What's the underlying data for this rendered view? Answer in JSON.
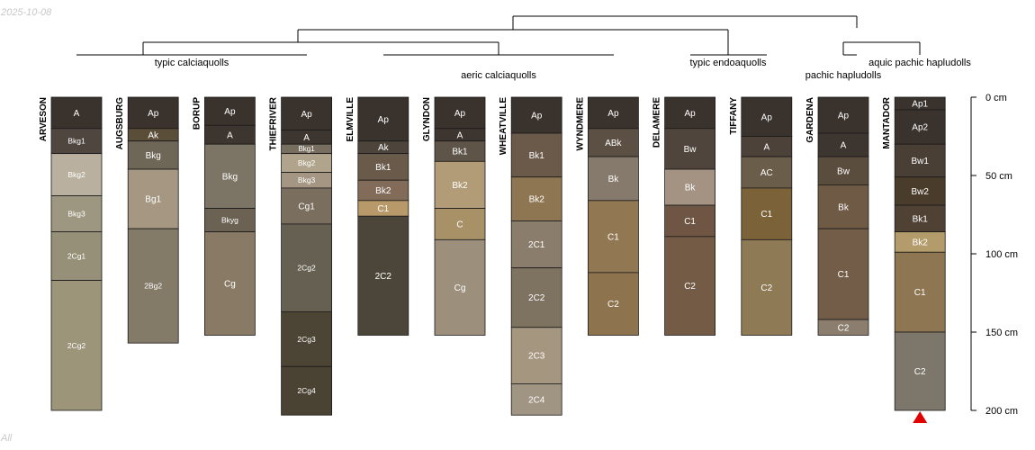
{
  "watermark": {
    "date": "2025-10-08",
    "subset": "All"
  },
  "chart_data": {
    "type": "soil-profile-sketch",
    "title": "",
    "depth_units": "cm",
    "depth_axis": {
      "ticks": [
        0,
        50,
        100,
        150,
        200
      ],
      "labels": [
        "0 cm",
        "50 cm",
        "100 cm",
        "150 cm",
        "200 cm"
      ],
      "max_depth": 200
    },
    "groups": [
      {
        "name": "typic calciaquolls"
      },
      {
        "name": "aeric calciaquolls"
      },
      {
        "name": "typic endoaquolls"
      },
      {
        "name": "pachic hapludolls"
      },
      {
        "name": "aquic pachic hapludolls"
      }
    ],
    "profiles": [
      {
        "name": "ARVESON",
        "horizons": [
          {
            "name": "A",
            "top": 0,
            "bottom": 20,
            "color": "#3a322d"
          },
          {
            "name": "Bkg1",
            "top": 20,
            "bottom": 36,
            "color": "#4f4640"
          },
          {
            "name": "Bkg2",
            "top": 36,
            "bottom": 63,
            "color": "#b9b09f"
          },
          {
            "name": "Bkg3",
            "top": 63,
            "bottom": 86,
            "color": "#9d9782"
          },
          {
            "name": "2Cg1",
            "top": 86,
            "bottom": 117,
            "color": "#979079"
          },
          {
            "name": "2Cg2",
            "top": 117,
            "bottom": 200,
            "color": "#9c957a"
          }
        ]
      },
      {
        "name": "AUGSBURG",
        "horizons": [
          {
            "name": "Ap",
            "top": 0,
            "bottom": 20,
            "color": "#3a322d"
          },
          {
            "name": "Ak",
            "top": 20,
            "bottom": 28,
            "color": "#5b4e39"
          },
          {
            "name": "Bkg",
            "top": 28,
            "bottom": 46,
            "color": "#6e6656"
          },
          {
            "name": "Bg1",
            "top": 46,
            "bottom": 84,
            "color": "#a59782"
          },
          {
            "name": "2Bg2",
            "top": 84,
            "bottom": 157,
            "color": "#837a67"
          }
        ]
      },
      {
        "name": "BORUP",
        "horizons": [
          {
            "name": "Ap",
            "top": 0,
            "bottom": 18,
            "color": "#3a322d"
          },
          {
            "name": "A",
            "top": 18,
            "bottom": 30,
            "color": "#3d3530"
          },
          {
            "name": "Bkg",
            "top": 30,
            "bottom": 71,
            "color": "#7c7464"
          },
          {
            "name": "Bkyg",
            "top": 71,
            "bottom": 86,
            "color": "#6b6254"
          },
          {
            "name": "Cg",
            "top": 86,
            "bottom": 152,
            "color": "#887a65"
          }
        ]
      },
      {
        "name": "THIEFRIVER",
        "horizons": [
          {
            "name": "Ap",
            "top": 0,
            "bottom": 21,
            "color": "#3a322d"
          },
          {
            "name": "A",
            "top": 21,
            "bottom": 30,
            "color": "#3d3530"
          },
          {
            "name": "Bkg1",
            "top": 30,
            "bottom": 36,
            "color": "#776e5f"
          },
          {
            "name": "Bkg2",
            "top": 36,
            "bottom": 48,
            "color": "#b1a48c"
          },
          {
            "name": "Bkg3",
            "top": 48,
            "bottom": 58,
            "color": "#a59684"
          },
          {
            "name": "Cg1",
            "top": 58,
            "bottom": 81,
            "color": "#7a6e5e"
          },
          {
            "name": "2Cg2",
            "top": 81,
            "bottom": 137,
            "color": "#656052"
          },
          {
            "name": "2Cg3",
            "top": 137,
            "bottom": 172,
            "color": "#4c4434"
          },
          {
            "name": "2Cg4",
            "top": 172,
            "bottom": 203,
            "color": "#4a4233"
          }
        ]
      },
      {
        "name": "ELMVILLE",
        "horizons": [
          {
            "name": "Ap",
            "top": 0,
            "bottom": 28,
            "color": "#3a322d"
          },
          {
            "name": "Ak",
            "top": 28,
            "bottom": 36,
            "color": "#4d443b"
          },
          {
            "name": "Bk1",
            "top": 36,
            "bottom": 53,
            "color": "#6a5a4a"
          },
          {
            "name": "Bk2",
            "top": 53,
            "bottom": 66,
            "color": "#826b58"
          },
          {
            "name": "C1",
            "top": 66,
            "bottom": 76,
            "color": "#b8996a"
          },
          {
            "name": "2C2",
            "top": 76,
            "bottom": 152,
            "color": "#4b4639"
          }
        ]
      },
      {
        "name": "GLYNDON",
        "horizons": [
          {
            "name": "Ap",
            "top": 0,
            "bottom": 20,
            "color": "#3a322d"
          },
          {
            "name": "A",
            "top": 20,
            "bottom": 28,
            "color": "#3d3530"
          },
          {
            "name": "Bk1",
            "top": 28,
            "bottom": 41,
            "color": "#5e5448"
          },
          {
            "name": "Bk2",
            "top": 41,
            "bottom": 71,
            "color": "#b29c78"
          },
          {
            "name": "C",
            "top": 71,
            "bottom": 91,
            "color": "#a89167"
          },
          {
            "name": "Cg",
            "top": 91,
            "bottom": 152,
            "color": "#9c8f7b"
          }
        ]
      },
      {
        "name": "WHEATVILLE",
        "horizons": [
          {
            "name": "Ap",
            "top": 0,
            "bottom": 23,
            "color": "#3a322d"
          },
          {
            "name": "Bk1",
            "top": 23,
            "bottom": 51,
            "color": "#6b5a4a"
          },
          {
            "name": "Bk2",
            "top": 51,
            "bottom": 79,
            "color": "#8e7652"
          },
          {
            "name": "2C1",
            "top": 79,
            "bottom": 109,
            "color": "#8a7d6b"
          },
          {
            "name": "2C2",
            "top": 109,
            "bottom": 147,
            "color": "#7e7261"
          },
          {
            "name": "2C3",
            "top": 147,
            "bottom": 183,
            "color": "#a59680"
          },
          {
            "name": "2C4",
            "top": 183,
            "bottom": 203,
            "color": "#a09482"
          }
        ]
      },
      {
        "name": "WYNDMERE",
        "horizons": [
          {
            "name": "Ap",
            "top": 0,
            "bottom": 20,
            "color": "#3a322d"
          },
          {
            "name": "ABk",
            "top": 20,
            "bottom": 38,
            "color": "#5b5043"
          },
          {
            "name": "Bk",
            "top": 38,
            "bottom": 66,
            "color": "#857a6b"
          },
          {
            "name": "C1",
            "top": 66,
            "bottom": 112,
            "color": "#917853"
          },
          {
            "name": "C2",
            "top": 112,
            "bottom": 152,
            "color": "#8d744f"
          }
        ]
      },
      {
        "name": "DELAMERE",
        "horizons": [
          {
            "name": "Ap",
            "top": 0,
            "bottom": 20,
            "color": "#3a322d"
          },
          {
            "name": "Bw",
            "top": 20,
            "bottom": 46,
            "color": "#4f453c"
          },
          {
            "name": "Bk",
            "top": 46,
            "bottom": 69,
            "color": "#a49382"
          },
          {
            "name": "C1",
            "top": 69,
            "bottom": 89,
            "color": "#6f5644"
          },
          {
            "name": "C2",
            "top": 89,
            "bottom": 152,
            "color": "#735b45"
          }
        ]
      },
      {
        "name": "TIFFANY",
        "horizons": [
          {
            "name": "Ap",
            "top": 0,
            "bottom": 25,
            "color": "#3a322d"
          },
          {
            "name": "A",
            "top": 25,
            "bottom": 38,
            "color": "#4c423a"
          },
          {
            "name": "AC",
            "top": 38,
            "bottom": 58,
            "color": "#6a5d4a"
          },
          {
            "name": "C1",
            "top": 58,
            "bottom": 91,
            "color": "#7b6238"
          },
          {
            "name": "C2",
            "top": 91,
            "bottom": 152,
            "color": "#8e7a55"
          }
        ]
      },
      {
        "name": "GARDENA",
        "horizons": [
          {
            "name": "Ap",
            "top": 0,
            "bottom": 23,
            "color": "#3a322d"
          },
          {
            "name": "A",
            "top": 23,
            "bottom": 38,
            "color": "#3d3530"
          },
          {
            "name": "Bw",
            "top": 38,
            "bottom": 56,
            "color": "#5b4d3e"
          },
          {
            "name": "Bk",
            "top": 56,
            "bottom": 84,
            "color": "#6f5a46"
          },
          {
            "name": "C1",
            "top": 84,
            "bottom": 142,
            "color": "#735d48"
          },
          {
            "name": "C2",
            "top": 142,
            "bottom": 152,
            "color": "#8b7e6e"
          }
        ]
      },
      {
        "name": "MANTADOR",
        "horizons": [
          {
            "name": "Ap1",
            "top": 0,
            "bottom": 8,
            "color": "#3a322d"
          },
          {
            "name": "Ap2",
            "top": 8,
            "bottom": 30,
            "color": "#3a322d"
          },
          {
            "name": "Bw1",
            "top": 30,
            "bottom": 51,
            "color": "#4a3f35"
          },
          {
            "name": "Bw2",
            "top": 51,
            "bottom": 69,
            "color": "#4a3c2b"
          },
          {
            "name": "Bk1",
            "top": 69,
            "bottom": 86,
            "color": "#4f4235"
          },
          {
            "name": "Bk2",
            "top": 86,
            "bottom": 99,
            "color": "#b39b6b"
          },
          {
            "name": "C1",
            "top": 99,
            "bottom": 150,
            "color": "#8e7652"
          },
          {
            "name": "C2",
            "top": 150,
            "bottom": 200,
            "color": "#7c766b"
          }
        ],
        "truncated": true
      }
    ]
  }
}
